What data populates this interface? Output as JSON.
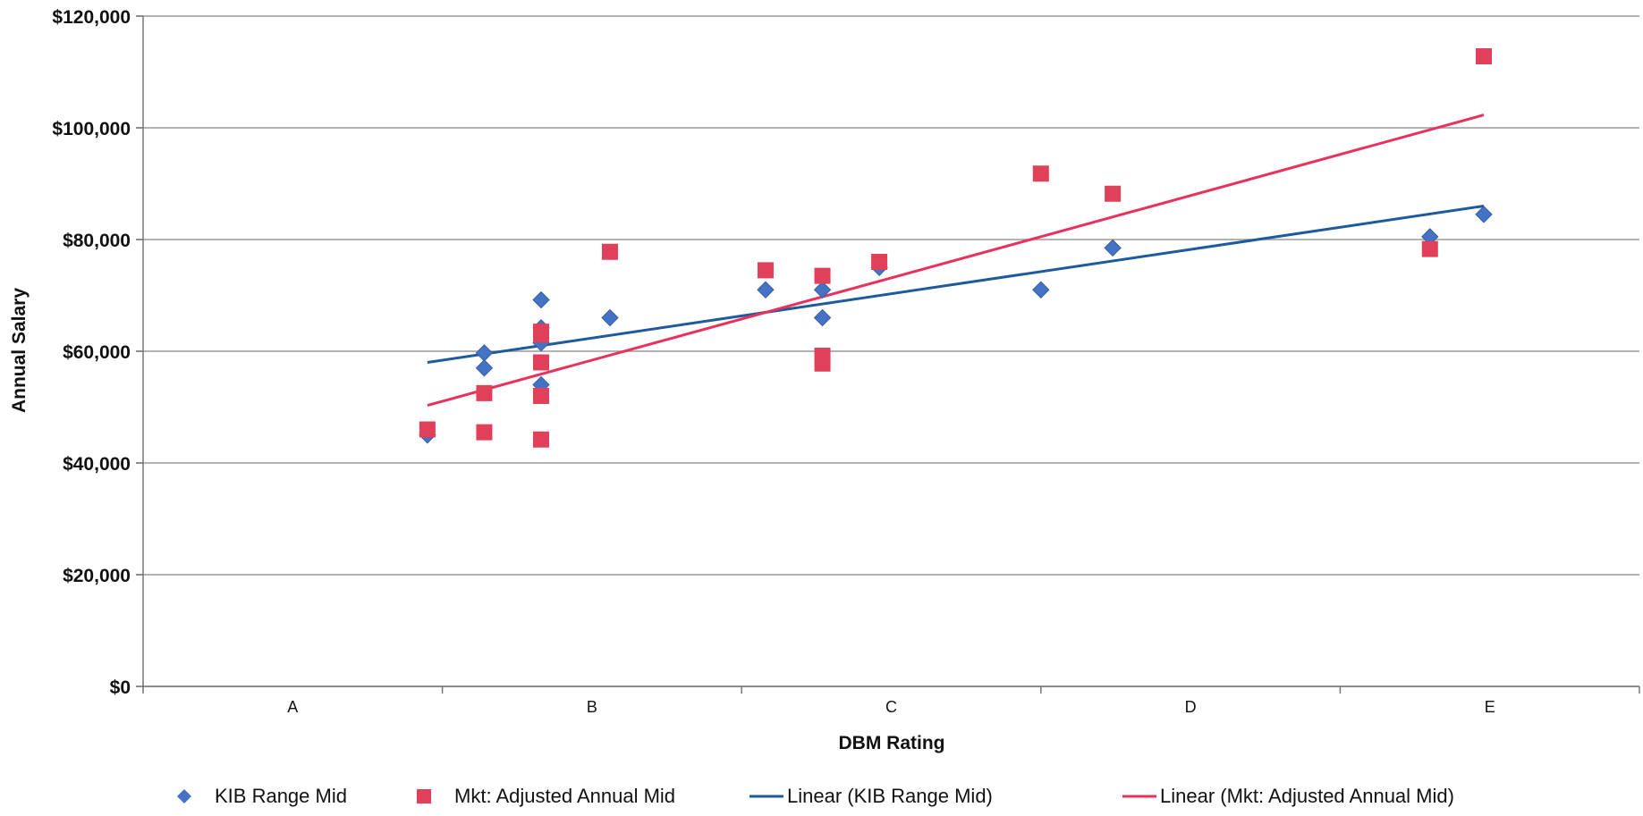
{
  "chart_data": {
    "type": "scatter",
    "title": "",
    "xlabel": "DBM Rating",
    "ylabel": "Annual Salary",
    "x_categories": [
      "A",
      "B",
      "C",
      "D",
      "E"
    ],
    "xlim": [
      0,
      5.0
    ],
    "ylim": [
      0,
      120000
    ],
    "y_ticks": [
      0,
      20000,
      40000,
      60000,
      80000,
      100000,
      120000
    ],
    "y_tick_labels": [
      "$0",
      "$20,000",
      "$40,000",
      "$60,000",
      "$80,000",
      "$100,000",
      "$120,000"
    ],
    "grid": true,
    "legend_position": "bottom",
    "series": [
      {
        "name": "KIB Range Mid",
        "marker": "diamond",
        "color": "#4472c4",
        "points": [
          [
            0.95,
            45000
          ],
          [
            1.14,
            59700
          ],
          [
            1.14,
            57000
          ],
          [
            1.33,
            69200
          ],
          [
            1.33,
            64200
          ],
          [
            1.33,
            61500
          ],
          [
            1.33,
            54000
          ],
          [
            1.56,
            66000
          ],
          [
            2.08,
            71000
          ],
          [
            2.27,
            71000
          ],
          [
            2.27,
            66000
          ],
          [
            2.46,
            75000
          ],
          [
            3.0,
            71000
          ],
          [
            3.24,
            78500
          ],
          [
            4.3,
            80500
          ],
          [
            4.48,
            84500
          ]
        ]
      },
      {
        "name": "Mkt: Adjusted Annual Mid",
        "marker": "square",
        "color": "#e0405a",
        "points": [
          [
            0.95,
            46000
          ],
          [
            1.14,
            52500
          ],
          [
            1.14,
            45500
          ],
          [
            1.33,
            63500
          ],
          [
            1.33,
            63000
          ],
          [
            1.33,
            58000
          ],
          [
            1.33,
            52000
          ],
          [
            1.33,
            44200
          ],
          [
            1.56,
            77800
          ],
          [
            2.08,
            74500
          ],
          [
            2.27,
            73500
          ],
          [
            2.27,
            59200
          ],
          [
            2.27,
            57800
          ],
          [
            2.46,
            76000
          ],
          [
            3.0,
            91800
          ],
          [
            3.24,
            88200
          ],
          [
            4.3,
            78300
          ],
          [
            4.48,
            112800
          ]
        ]
      },
      {
        "name": "Linear (KIB Range Mid)",
        "type": "line",
        "color": "#1f5a9e",
        "points": [
          [
            0.95,
            58000
          ],
          [
            4.48,
            86000
          ]
        ]
      },
      {
        "name": "Linear (Mkt: Adjusted Annual Mid)",
        "type": "line",
        "color": "#e8315c",
        "points": [
          [
            0.95,
            50300
          ],
          [
            4.48,
            102300
          ]
        ]
      }
    ]
  },
  "legend": {
    "items": [
      {
        "label": "KIB Range Mid",
        "icon": "diamond-marker-icon",
        "color": "#4472c4"
      },
      {
        "label": "Mkt: Adjusted Annual Mid",
        "icon": "square-marker-icon",
        "color": "#e0405a"
      },
      {
        "label": "Linear (KIB Range Mid)",
        "icon": "line-marker-icon",
        "color": "#1f5a9e"
      },
      {
        "label": "Linear (Mkt: Adjusted Annual Mid)",
        "icon": "line-marker-icon",
        "color": "#e8315c"
      }
    ]
  }
}
